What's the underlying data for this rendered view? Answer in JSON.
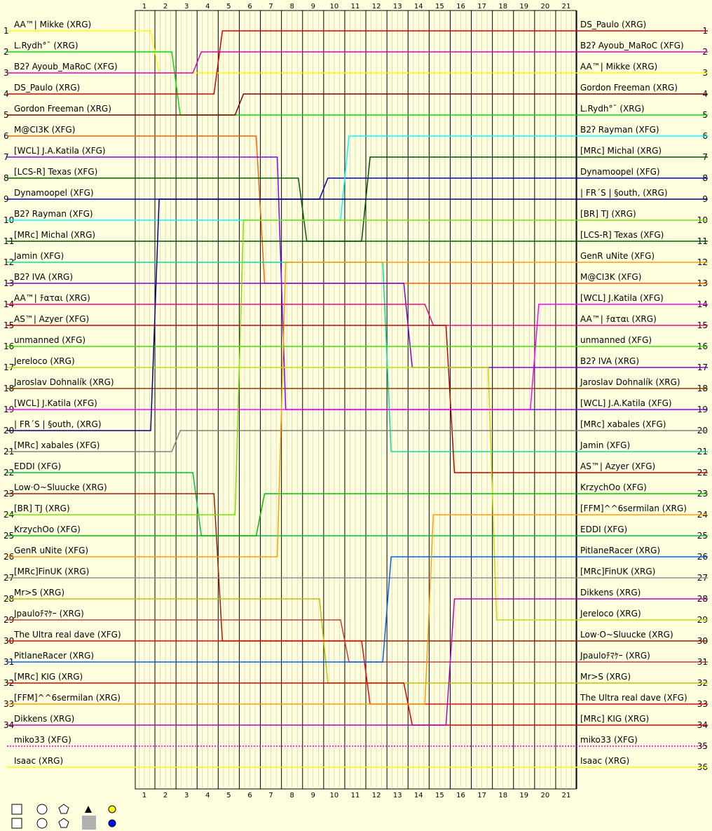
{
  "chart_data": {
    "type": "lap-chart",
    "laps": [
      1,
      2,
      3,
      4,
      5,
      6,
      7,
      8,
      9,
      10,
      11,
      12,
      13,
      14,
      15,
      16,
      17,
      18,
      19,
      20,
      21
    ],
    "positions": [
      1,
      2,
      3,
      4,
      5,
      6,
      7,
      8,
      9,
      10,
      11,
      12,
      13,
      14,
      15,
      16,
      17,
      18,
      19,
      20,
      21,
      22,
      23,
      24,
      25,
      26,
      27,
      28,
      29,
      30,
      31,
      32,
      33,
      34,
      35,
      36
    ],
    "start": [
      "AA™| Mikke (XRG)",
      "L.Rydh°¯ (XRG)",
      "B2ʔ Ayoub_MaRoC (XFG)",
      "DS_Paulo (XRG)",
      "Gordon Freeman (XRG)",
      "M@CI3K (XFG)",
      "[WCL] J.A.Katila (XFG)",
      "[LCS-R] Texas (XFG)",
      "Dynamoopel (XFG)",
      "B2ʔ Rayman (XFG)",
      "[MRc] Michal (XRG)",
      "Jamin (XFG)",
      "B2ʔ IVA (XRG)",
      "AA™| ﾁαται (XRG)",
      "AS™| Azyer (XFG)",
      "unmanned (XFG)",
      "Jereloco (XRG)",
      "Jaroslav Dohnalík (XRG)",
      "[WCL] J.Katila (XFG)",
      "| FR´S | §outh, (XRG)",
      "[MRc] xabales (XFG)",
      "EDDI (XFG)",
      "Low·O~Sluucke (XRG)",
      "[BR] TJ (XRG)",
      "KrzychOo (XFG)",
      "GenR uNite (XFG)",
      "[MRc]FinUK (XRG)",
      "Mr>S (XRG)",
      "Jpauloﾁﾏｹｰ (XRG)",
      "The Ultra real dave (XFG)",
      "PitlaneRacer (XRG)",
      "[MRc] KIG (XRG)",
      "[FFM]^^6sermilan (XRG)",
      "Dikkens (XRG)",
      "miko33 (XFG)",
      "Isaac (XRG)"
    ],
    "finish": [
      "DS_Paulo (XRG)",
      "B2ʔ Ayoub_MaRoC (XFG)",
      "AA™| Mikke (XRG)",
      "Gordon Freeman (XRG)",
      "L.Rydh°¯ (XRG)",
      "B2ʔ Rayman (XFG)",
      "[MRc] Michal (XRG)",
      "Dynamoopel (XFG)",
      "| FR´S | §outh, (XRG)",
      "[BR] TJ (XRG)",
      "[LCS-R] Texas (XFG)",
      "GenR uNite (XFG)",
      "M@CI3K (XFG)",
      "[WCL] J.Katila (XFG)",
      "AA™| ﾁαται (XRG)",
      "unmanned (XFG)",
      "B2ʔ IVA (XRG)",
      "Jaroslav Dohnalík (XRG)",
      "[WCL] J.A.Katila (XFG)",
      "[MRc] xabales (XFG)",
      "Jamin (XFG)",
      "AS™| Azyer (XFG)",
      "KrzychOo (XFG)",
      "[FFM]^^6sermilan (XRG)",
      "EDDI (XFG)",
      "PitlaneRacer (XRG)",
      "[MRc]FinUK (XRG)",
      "Dikkens (XRG)",
      "Jereloco (XRG)",
      "Low·O~Sluucke (XRG)",
      "Jpauloﾁﾏｹｰ (XRG)",
      "Mr>S (XRG)",
      "The Ultra real dave (XFG)",
      "[MRc] KIG (XRG)",
      "miko33 (XFG)",
      "Isaac (XRG)"
    ],
    "drivers": [
      {
        "color": "#ffff00",
        "start": 1,
        "finish": 3
      },
      {
        "color": "#00e000",
        "start": 2,
        "finish": 5
      },
      {
        "color": "#e000c0",
        "start": 3,
        "finish": 2
      },
      {
        "color": "#e00000",
        "start": 4,
        "finish": 1
      },
      {
        "color": "#800000",
        "start": 5,
        "finish": 4
      },
      {
        "color": "#ff6000",
        "start": 6,
        "finish": 13
      },
      {
        "color": "#8000ff",
        "start": 7,
        "finish": 19
      },
      {
        "color": "#006000",
        "start": 8,
        "finish": 11
      },
      {
        "color": "#0000c0",
        "start": 9,
        "finish": 8
      },
      {
        "color": "#00ffff",
        "start": 10,
        "finish": 6
      },
      {
        "color": "#005000",
        "start": 11,
        "finish": 7
      },
      {
        "color": "#00e0a0",
        "start": 12,
        "finish": 21
      },
      {
        "color": "#8000e0",
        "start": 13,
        "finish": 17
      },
      {
        "color": "#ff0080",
        "start": 14,
        "finish": 15
      },
      {
        "color": "#c00000",
        "start": 15,
        "finish": 22
      },
      {
        "color": "#40e000",
        "start": 16,
        "finish": 16
      },
      {
        "color": "#c0e000",
        "start": 17,
        "finish": 29
      },
      {
        "color": "#804000",
        "start": 18,
        "finish": 18
      },
      {
        "color": "#ff00ff",
        "start": 19,
        "finish": 14
      },
      {
        "color": "#000080",
        "start": 20,
        "finish": 9
      },
      {
        "color": "#808080",
        "start": 21,
        "finish": 20
      },
      {
        "color": "#00c040",
        "start": 22,
        "finish": 25
      },
      {
        "color": "#a02000",
        "start": 23,
        "finish": 30
      },
      {
        "color": "#80e000",
        "start": 24,
        "finish": 10
      },
      {
        "color": "#00c000",
        "start": 25,
        "finish": 23
      },
      {
        "color": "#ffa000",
        "start": 26,
        "finish": 12
      },
      {
        "color": "#909090",
        "start": 27,
        "finish": 27
      },
      {
        "color": "#c0c000",
        "start": 28,
        "finish": 32
      },
      {
        "color": "#c04040",
        "start": 29,
        "finish": 31
      },
      {
        "color": "#ff0000",
        "start": 30,
        "finish": 33
      },
      {
        "color": "#0060ff",
        "start": 31,
        "finish": 26
      },
      {
        "color": "#e00000",
        "start": 32,
        "finish": 34
      },
      {
        "color": "#ffa000",
        "start": 33,
        "finish": 24
      },
      {
        "color": "#c000c0",
        "start": 34,
        "finish": 28
      },
      {
        "color": "#e000e0",
        "start": 35,
        "finish": 35
      },
      {
        "color": "#ffff00",
        "start": 36,
        "finish": 36
      }
    ]
  }
}
